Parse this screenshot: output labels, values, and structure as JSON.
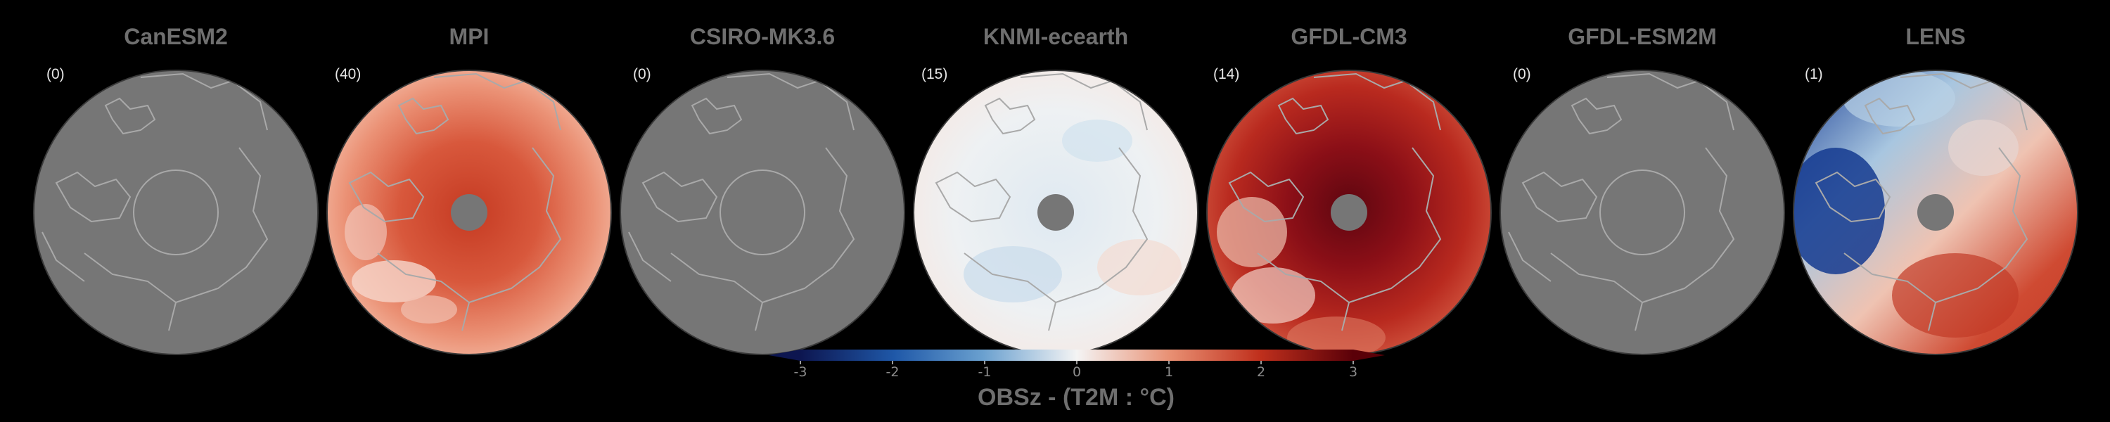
{
  "panels": [
    {
      "model": "CanESM2",
      "count": "(0)",
      "style": "nodata"
    },
    {
      "model": "MPI",
      "count": "(40)",
      "style": "warm"
    },
    {
      "model": "CSIRO-MK3.6",
      "count": "(0)",
      "style": "nodata"
    },
    {
      "model": "KNMI-ecearth",
      "count": "(15)",
      "style": "neutral"
    },
    {
      "model": "GFDL-CM3",
      "count": "(14)",
      "style": "hot"
    },
    {
      "model": "GFDL-ESM2M",
      "count": "(0)",
      "style": "nodata"
    },
    {
      "model": "LENS",
      "count": "(1)",
      "style": "mixed"
    }
  ],
  "colorbar": {
    "label": "OBSz - (T2M : °C)",
    "ticks": [
      "-3",
      "-2",
      "-1",
      "0",
      "1",
      "2",
      "3"
    ],
    "range": [
      -3,
      3
    ],
    "extend": "both",
    "colors": {
      "min": "#0d1650",
      "low": "#1f58a8",
      "mid_low": "#9ec3dd",
      "zero": "#f4f4f4",
      "mid_high": "#e88f72",
      "high": "#c0301d",
      "max": "#5a0008"
    }
  },
  "map_colors": {
    "nodata_fill": "#767676",
    "coastline": "#a9a9a9",
    "pole_hole": "#767676",
    "background": "#000000"
  }
}
